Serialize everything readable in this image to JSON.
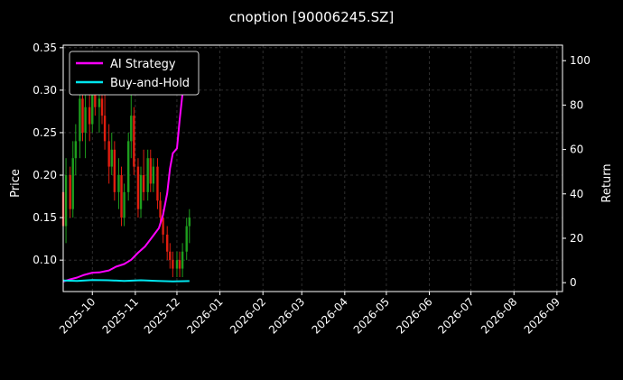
{
  "chart_data": {
    "type": "candlestick+line",
    "title": "cnoption [90006245.SZ]",
    "ylabel_left": "Price",
    "ylabel_right": "Return",
    "x_range": [
      "2025-09-10",
      "2026-09-05"
    ],
    "y_left_range": [
      0.063,
      0.353
    ],
    "y_right_range": [
      -4,
      107
    ],
    "x_ticks": [
      "2025-10",
      "2025-11",
      "2025-12",
      "2026-01",
      "2026-02",
      "2026-03",
      "2026-04",
      "2026-05",
      "2026-06",
      "2026-07",
      "2026-08",
      "2026-09"
    ],
    "y_left_ticks": [
      "0.10",
      "0.15",
      "0.20",
      "0.25",
      "0.30",
      "0.35"
    ],
    "y_right_ticks": [
      "0",
      "20",
      "40",
      "60",
      "80",
      "100"
    ],
    "grid": true,
    "legend_placement": "top-left",
    "colors": {
      "background": "#000000",
      "grid": "#3a3a3a",
      "up": "#1e9e1e",
      "down": "#e01e10",
      "ai_strategy": "#ff00ff",
      "buy_and_hold": "#00e5ee"
    },
    "series": [
      {
        "name": "AI Strategy",
        "x": [
          "2025-09-10",
          "2025-09-15",
          "2025-09-20",
          "2025-09-25",
          "2025-10-01",
          "2025-10-06",
          "2025-10-13",
          "2025-10-18",
          "2025-10-24",
          "2025-10-29",
          "2025-11-03",
          "2025-11-08",
          "2025-11-13",
          "2025-11-18",
          "2025-11-21",
          "2025-11-24",
          "2025-11-26",
          "2025-11-28",
          "2025-12-01",
          "2025-12-03",
          "2025-12-05",
          "2025-12-07",
          "2025-12-09",
          "2025-12-10"
        ],
        "values": [
          0.5,
          1.5,
          2.3,
          3.5,
          4.5,
          4.6,
          5.5,
          7.2,
          8.4,
          10.3,
          13.5,
          16.3,
          20.4,
          24.6,
          30.6,
          40.3,
          51.5,
          58.3,
          60.5,
          73.4,
          85.0,
          92.5,
          96.0,
          100.0
        ]
      },
      {
        "name": "Buy-and-Hold",
        "x": [
          "2025-09-10",
          "2025-09-20",
          "2025-10-01",
          "2025-10-12",
          "2025-10-24",
          "2025-11-05",
          "2025-11-17",
          "2025-11-28",
          "2025-12-10"
        ],
        "values": [
          1.0,
          0.8,
          1.2,
          1.1,
          0.8,
          1.1,
          0.8,
          0.6,
          0.7
        ]
      }
    ],
    "ohlc": [
      {
        "date": "2025-09-10",
        "open": 0.18,
        "high": 0.21,
        "low": 0.13,
        "close": 0.14
      },
      {
        "date": "2025-09-12",
        "open": 0.14,
        "high": 0.22,
        "low": 0.12,
        "close": 0.2
      },
      {
        "date": "2025-09-15",
        "open": 0.2,
        "high": 0.21,
        "low": 0.15,
        "close": 0.16
      },
      {
        "date": "2025-09-17",
        "open": 0.16,
        "high": 0.24,
        "low": 0.15,
        "close": 0.22
      },
      {
        "date": "2025-09-19",
        "open": 0.22,
        "high": 0.26,
        "low": 0.2,
        "close": 0.24
      },
      {
        "date": "2025-09-22",
        "open": 0.24,
        "high": 0.3,
        "low": 0.22,
        "close": 0.29
      },
      {
        "date": "2025-09-24",
        "open": 0.29,
        "high": 0.32,
        "low": 0.24,
        "close": 0.25
      },
      {
        "date": "2025-09-26",
        "open": 0.25,
        "high": 0.31,
        "low": 0.22,
        "close": 0.28
      },
      {
        "date": "2025-09-29",
        "open": 0.28,
        "high": 0.3,
        "low": 0.24,
        "close": 0.26
      },
      {
        "date": "2025-10-01",
        "open": 0.26,
        "high": 0.32,
        "low": 0.25,
        "close": 0.31
      },
      {
        "date": "2025-10-03",
        "open": 0.31,
        "high": 0.33,
        "low": 0.27,
        "close": 0.28
      },
      {
        "date": "2025-10-06",
        "open": 0.28,
        "high": 0.3,
        "low": 0.25,
        "close": 0.29
      },
      {
        "date": "2025-10-08",
        "open": 0.29,
        "high": 0.32,
        "low": 0.26,
        "close": 0.27
      },
      {
        "date": "2025-10-10",
        "open": 0.27,
        "high": 0.3,
        "low": 0.23,
        "close": 0.24
      },
      {
        "date": "2025-10-13",
        "open": 0.24,
        "high": 0.26,
        "low": 0.19,
        "close": 0.21
      },
      {
        "date": "2025-10-15",
        "open": 0.21,
        "high": 0.25,
        "low": 0.2,
        "close": 0.23
      },
      {
        "date": "2025-10-17",
        "open": 0.23,
        "high": 0.24,
        "low": 0.17,
        "close": 0.18
      },
      {
        "date": "2025-10-20",
        "open": 0.18,
        "high": 0.22,
        "low": 0.16,
        "close": 0.2
      },
      {
        "date": "2025-10-22",
        "open": 0.2,
        "high": 0.21,
        "low": 0.14,
        "close": 0.15
      },
      {
        "date": "2025-10-24",
        "open": 0.15,
        "high": 0.19,
        "low": 0.14,
        "close": 0.18
      },
      {
        "date": "2025-10-27",
        "open": 0.18,
        "high": 0.25,
        "low": 0.17,
        "close": 0.24
      },
      {
        "date": "2025-10-29",
        "open": 0.24,
        "high": 0.3,
        "low": 0.22,
        "close": 0.27
      },
      {
        "date": "2025-10-31",
        "open": 0.27,
        "high": 0.28,
        "low": 0.2,
        "close": 0.21
      },
      {
        "date": "2025-11-03",
        "open": 0.21,
        "high": 0.22,
        "low": 0.15,
        "close": 0.16
      },
      {
        "date": "2025-11-05",
        "open": 0.16,
        "high": 0.21,
        "low": 0.15,
        "close": 0.2
      },
      {
        "date": "2025-11-07",
        "open": 0.2,
        "high": 0.23,
        "low": 0.17,
        "close": 0.18
      },
      {
        "date": "2025-11-10",
        "open": 0.18,
        "high": 0.23,
        "low": 0.17,
        "close": 0.22
      },
      {
        "date": "2025-11-12",
        "open": 0.22,
        "high": 0.23,
        "low": 0.18,
        "close": 0.19
      },
      {
        "date": "2025-11-14",
        "open": 0.19,
        "high": 0.22,
        "low": 0.18,
        "close": 0.21
      },
      {
        "date": "2025-11-17",
        "open": 0.21,
        "high": 0.22,
        "low": 0.16,
        "close": 0.17
      },
      {
        "date": "2025-11-19",
        "open": 0.17,
        "high": 0.18,
        "low": 0.14,
        "close": 0.15
      },
      {
        "date": "2025-11-21",
        "open": 0.15,
        "high": 0.16,
        "low": 0.12,
        "close": 0.13
      },
      {
        "date": "2025-11-24",
        "open": 0.13,
        "high": 0.14,
        "low": 0.1,
        "close": 0.11
      },
      {
        "date": "2025-11-26",
        "open": 0.11,
        "high": 0.12,
        "low": 0.09,
        "close": 0.1
      },
      {
        "date": "2025-11-28",
        "open": 0.1,
        "high": 0.11,
        "low": 0.08,
        "close": 0.09
      },
      {
        "date": "2025-12-01",
        "open": 0.09,
        "high": 0.11,
        "low": 0.08,
        "close": 0.1
      },
      {
        "date": "2025-12-03",
        "open": 0.1,
        "high": 0.11,
        "low": 0.08,
        "close": 0.09
      },
      {
        "date": "2025-12-05",
        "open": 0.09,
        "high": 0.12,
        "low": 0.08,
        "close": 0.11
      },
      {
        "date": "2025-12-08",
        "open": 0.11,
        "high": 0.15,
        "low": 0.1,
        "close": 0.14
      },
      {
        "date": "2025-12-10",
        "open": 0.14,
        "high": 0.16,
        "low": 0.12,
        "close": 0.15
      }
    ]
  }
}
